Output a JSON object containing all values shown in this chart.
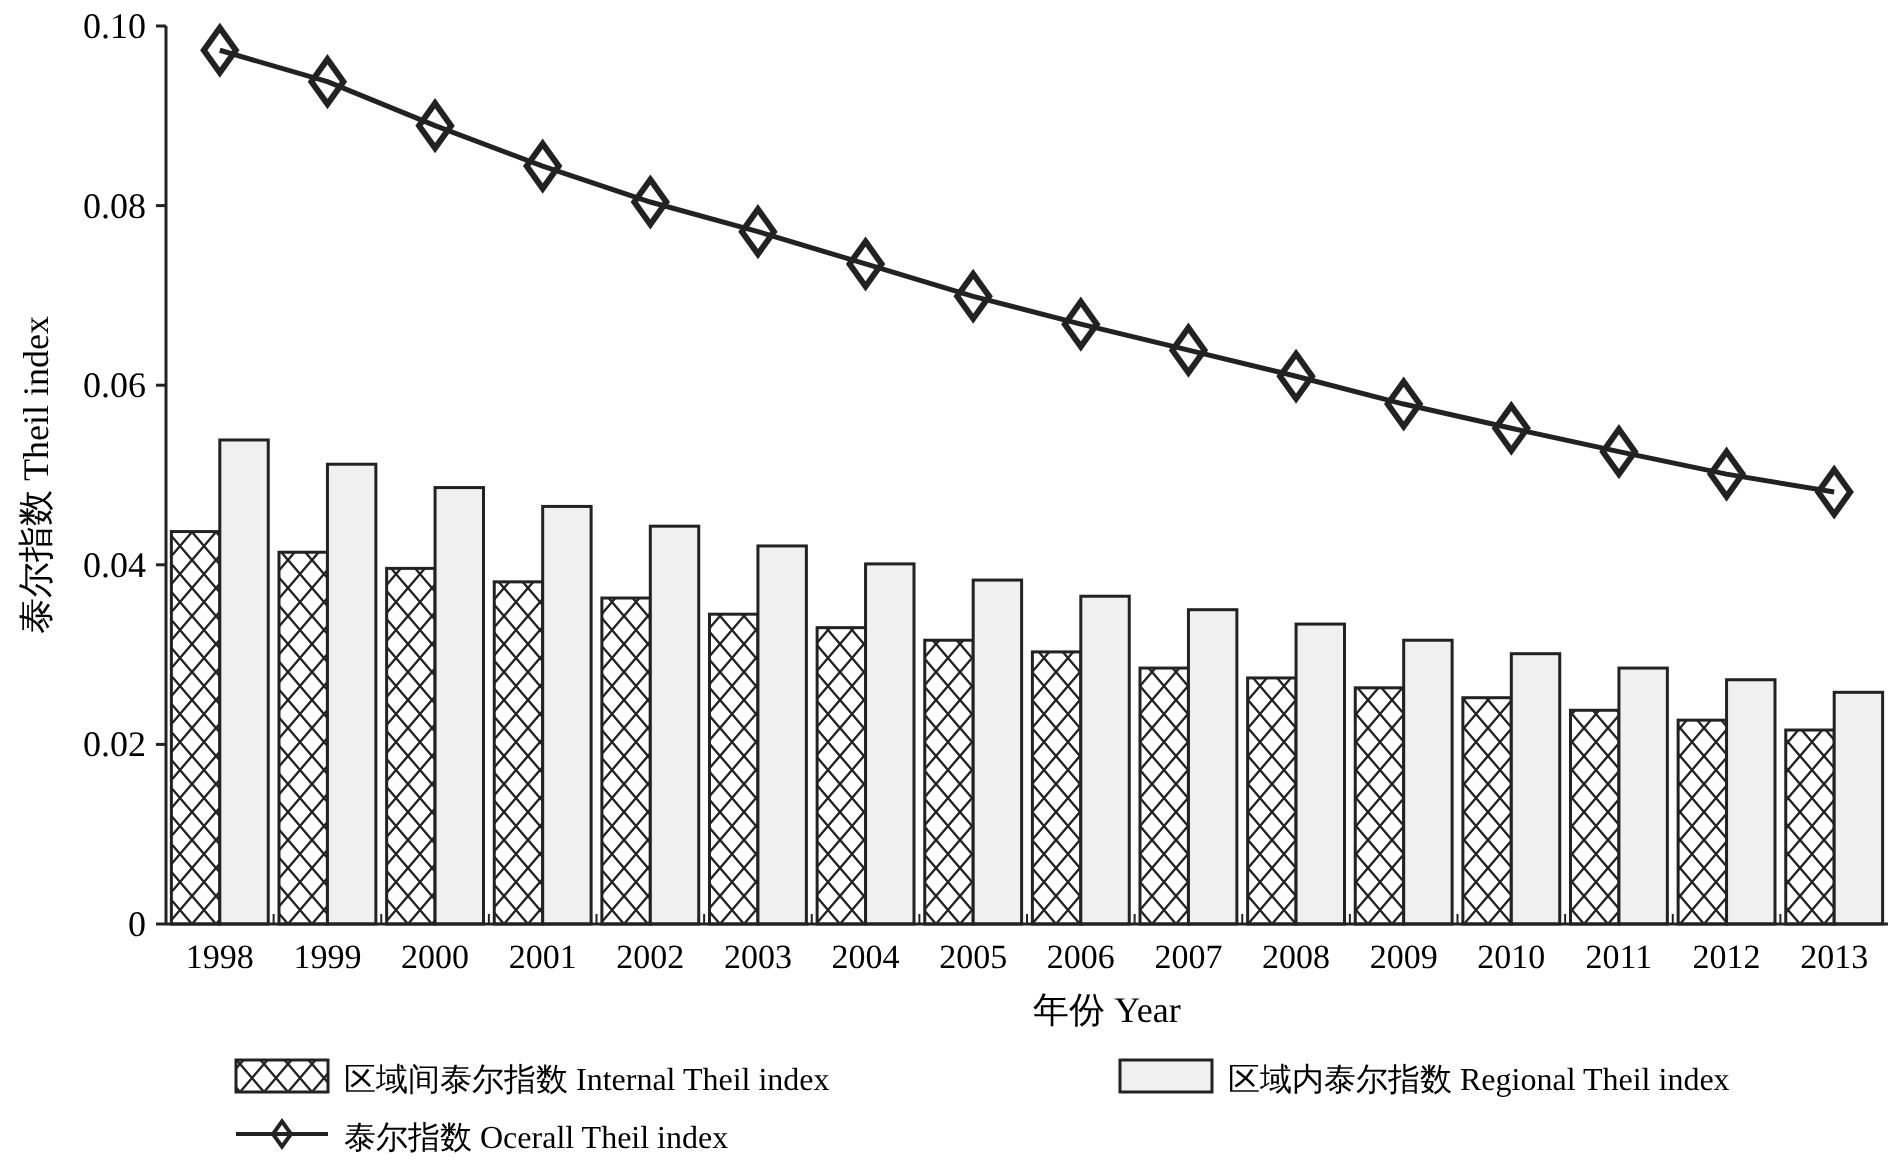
{
  "chart_data": {
    "type": "bar",
    "xlabel": "年份 Year",
    "ylabel": "泰尔指数 Theil index",
    "categories": [
      "1998",
      "1999",
      "2000",
      "2001",
      "2002",
      "2003",
      "2004",
      "2005",
      "2006",
      "2007",
      "2008",
      "2009",
      "2010",
      "2011",
      "2012",
      "2013"
    ],
    "series": [
      {
        "name": "区域间泰尔指数 Internal Theil index",
        "color": "#222222",
        "values": [
          0.0437,
          0.0414,
          0.0396,
          0.0381,
          0.0363,
          0.0345,
          0.033,
          0.0316,
          0.0303,
          0.0285,
          0.0274,
          0.0263,
          0.0252,
          0.0238,
          0.0227,
          0.0216
        ]
      },
      {
        "name": "区域内泰尔指数 Regional Theil index",
        "color": "#f0f0f0",
        "values": [
          0.0539,
          0.0512,
          0.0486,
          0.0465,
          0.0443,
          0.0421,
          0.0401,
          0.0383,
          0.0365,
          0.035,
          0.0334,
          0.0316,
          0.0301,
          0.0285,
          0.0272,
          0.0258
        ]
      },
      {
        "name": "泰尔指数 Ocerall Theil index",
        "type": "line",
        "color": "#222222",
        "marker": "diamond",
        "values": [
          0.0973,
          0.0938,
          0.0889,
          0.0844,
          0.0804,
          0.0771,
          0.0735,
          0.0699,
          0.0668,
          0.0639,
          0.061,
          0.0579,
          0.0552,
          0.0526,
          0.0501,
          0.0481
        ]
      }
    ],
    "ylim": [
      0,
      0.1
    ],
    "yticks": [
      0,
      0.02,
      0.04,
      0.06,
      0.08,
      {
        "value": 0.1,
        "label": "0.10"
      }
    ],
    "grid": false,
    "legend": "bottom"
  }
}
